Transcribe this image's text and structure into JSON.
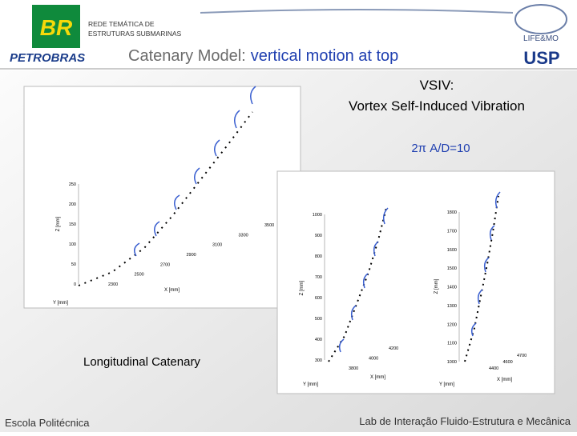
{
  "header": {
    "org_line1": "REDE TEMÁTICA DE",
    "org_line2": "ESTRUTURAS SUBMARINAS",
    "title_prefix": "Catenary Model:",
    "title_highlight": "vertical motion at top",
    "logo_left": "BR",
    "logo_left_name": "PETROBRAS",
    "logo_right": "LIFE&MO",
    "logo_right2": "USP"
  },
  "annotations": {
    "vsiv": "VSIV:",
    "vsiv_desc": "Vortex Self-Induced Vibration",
    "param": "2π A/D=10",
    "left_caption": "Longitudinal Catenary"
  },
  "plots": [
    {
      "z_label": "Z [mm]",
      "x_label": "X [mm]",
      "y_label": "Y [mm]",
      "z_ticks": [
        "250",
        "200",
        "150",
        "100",
        "50",
        "0"
      ],
      "x_ticks": [
        "2300",
        "2500",
        "2700",
        "2900",
        "3100",
        "3300",
        "3500"
      ]
    },
    {
      "z_label": "Z [mm]",
      "x_label": "X [mm]",
      "y_label": "Y [mm]",
      "z_ticks": [
        "1000",
        "900",
        "800",
        "700",
        "600",
        "500",
        "400",
        "300"
      ],
      "x_ticks": [
        "3800",
        "4000",
        "4200"
      ]
    },
    {
      "z_label": "Z [mm]",
      "x_label": "X [mm]",
      "y_label": "Y [mm]",
      "z_ticks": [
        "1800",
        "1700",
        "1600",
        "1500",
        "1400",
        "1300",
        "1200",
        "1100",
        "1000"
      ],
      "x_ticks": [
        "4400",
        "4600",
        "4700"
      ]
    }
  ],
  "footer": {
    "left": "Escola Politécnica",
    "right": "Lab de Interação Fluido-Estrutura e Mecânica"
  }
}
